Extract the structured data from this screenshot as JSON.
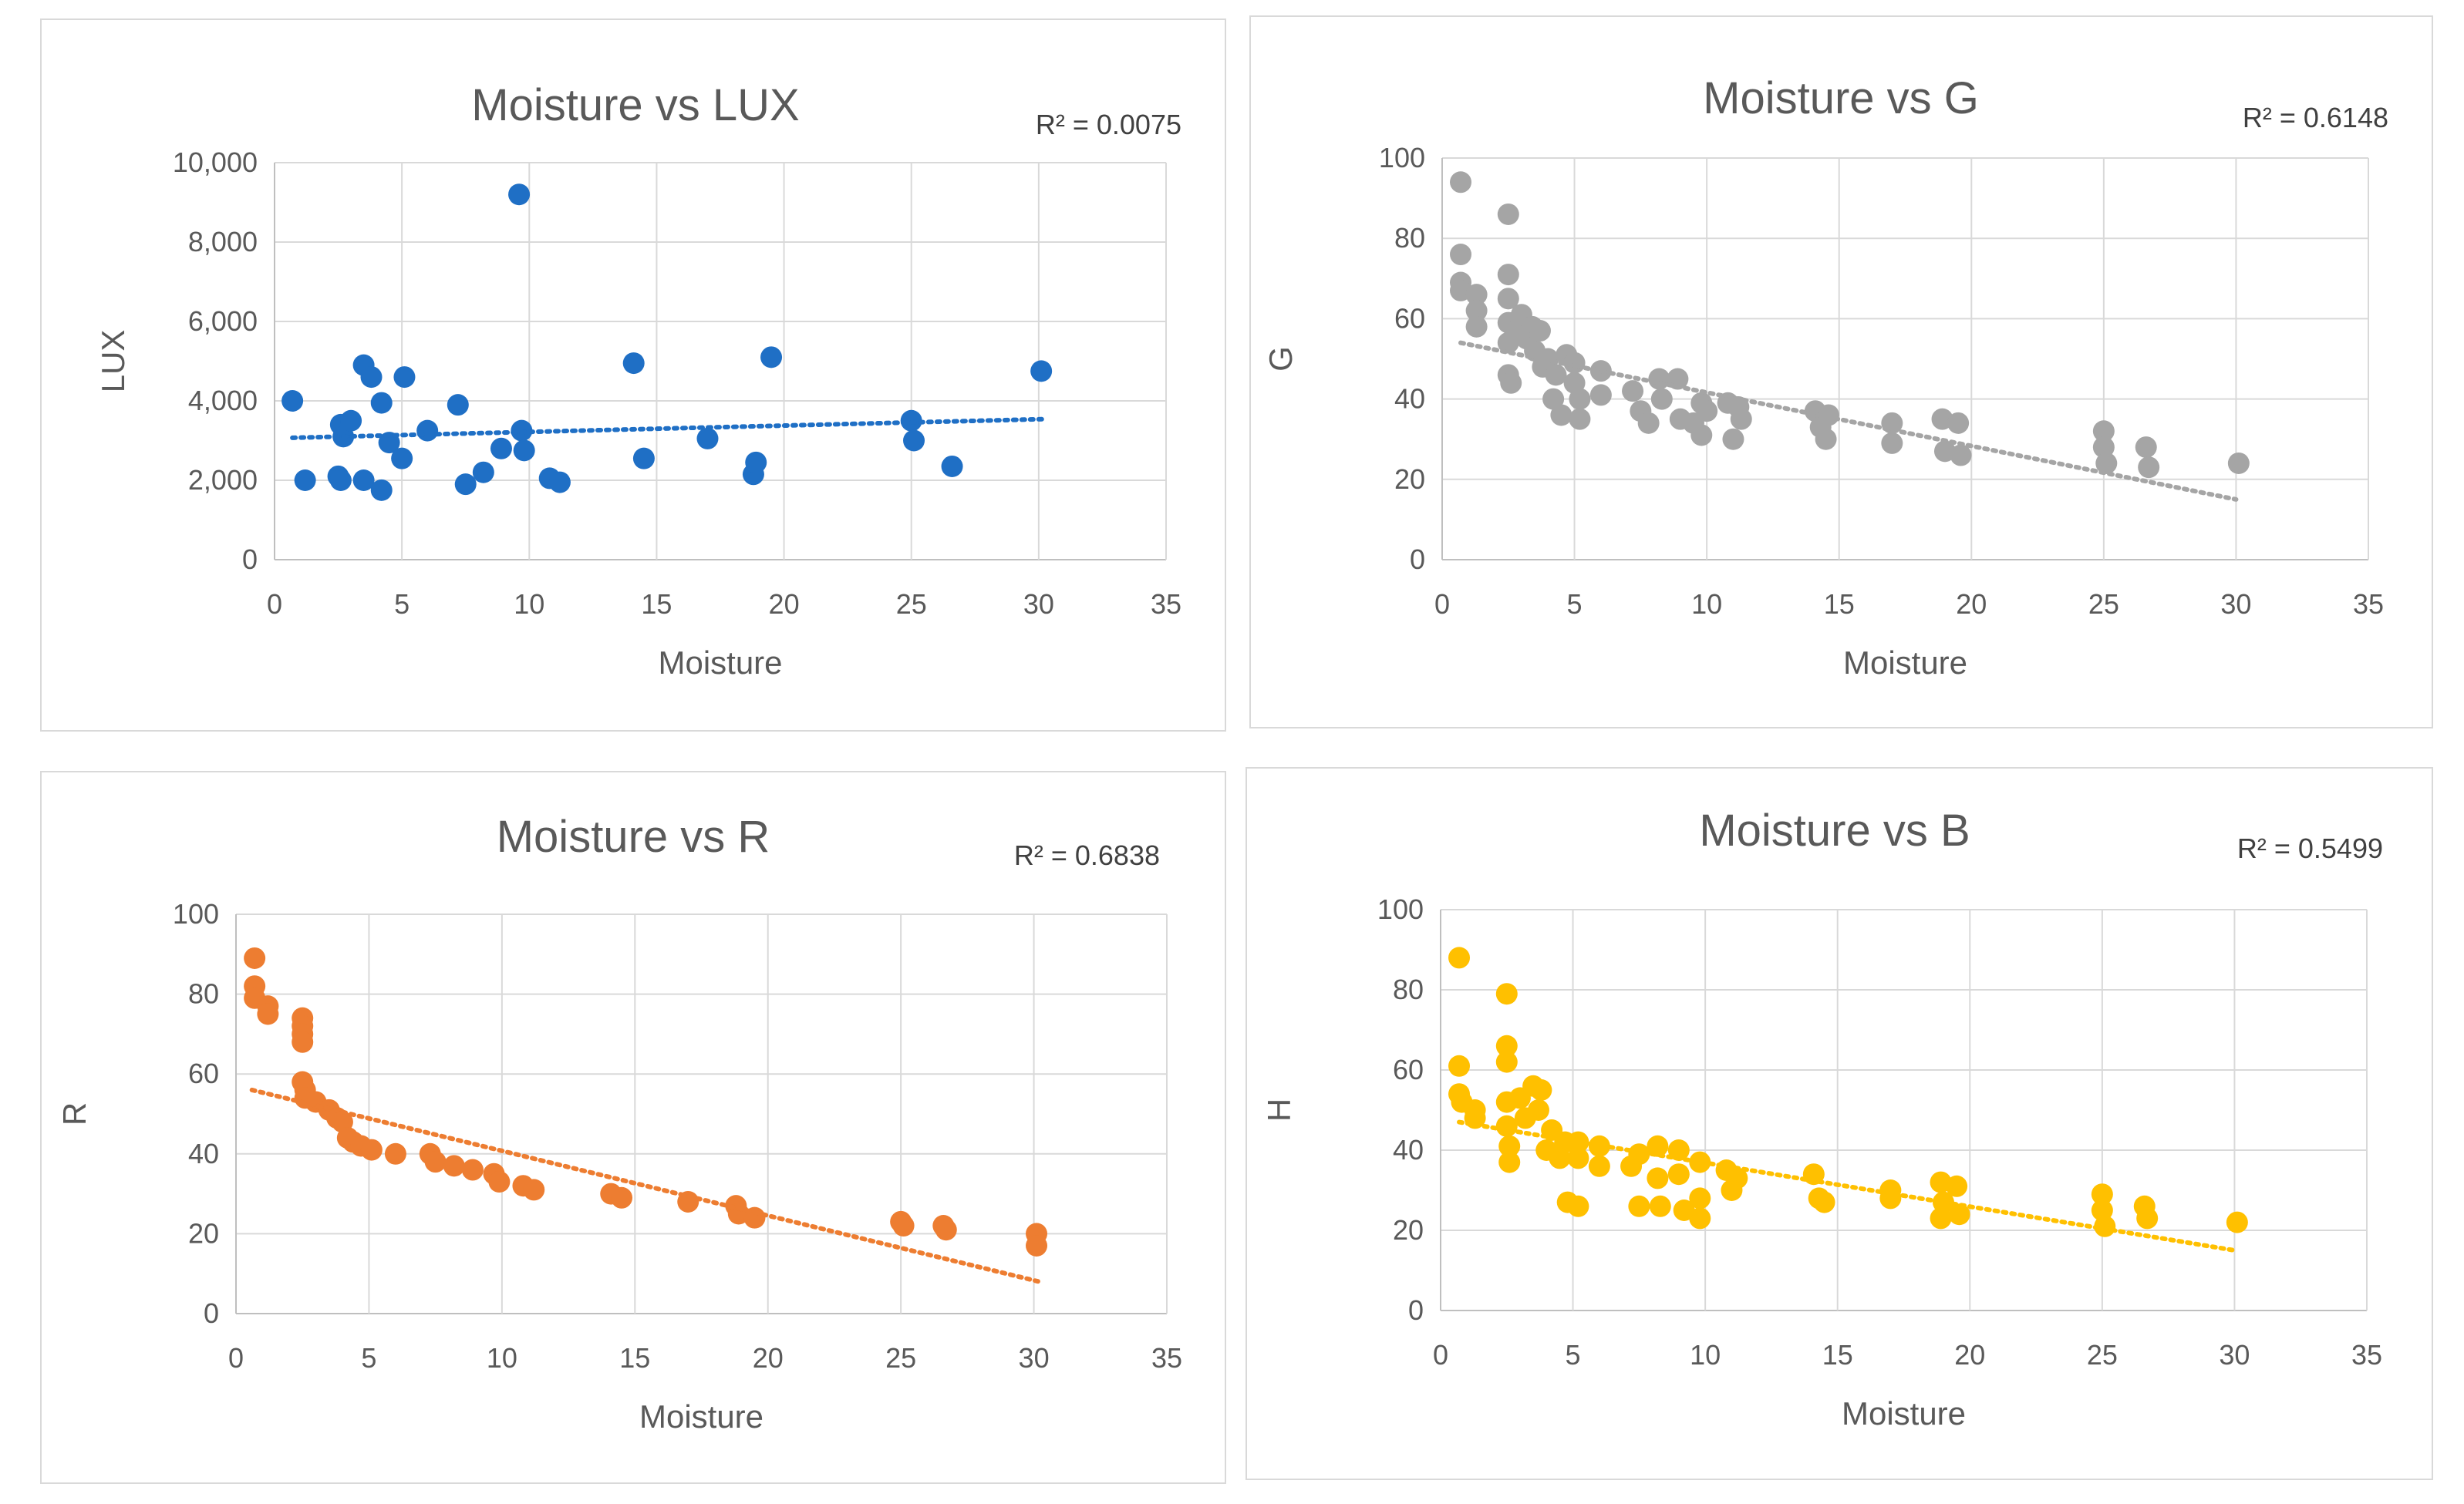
{
  "chart_data": [
    {
      "id": "lux",
      "type": "scatter",
      "title": "Moisture vs LUX",
      "r2_label": "R² = 0.0075",
      "xlabel": "Moisture",
      "ylabel": "LUX",
      "xlim": [
        0,
        35
      ],
      "ylim": [
        0,
        10000
      ],
      "x_ticks": [
        0,
        5,
        10,
        15,
        20,
        25,
        30,
        35
      ],
      "y_ticks": [
        0,
        2000,
        4000,
        6000,
        8000,
        10000
      ],
      "y_tick_labels": [
        "0",
        "2,000",
        "4,000",
        "6,000",
        "8,000",
        "10,000"
      ],
      "color": "#1f6fc5",
      "trendline": {
        "x": [
          0.7,
          30.2
        ],
        "y": [
          3070,
          3540
        ]
      },
      "series": [
        {
          "name": "LUX",
          "x": [
            0.7,
            1.2,
            2.5,
            2.6,
            2.6,
            2.7,
            3.0,
            3.5,
            3.5,
            3.8,
            4.2,
            4.2,
            4.5,
            5.0,
            5.1,
            6.0,
            7.2,
            7.5,
            8.2,
            8.9,
            9.6,
            9.7,
            9.8,
            10.8,
            11.2,
            14.1,
            14.5,
            17.0,
            18.8,
            18.9,
            19.5,
            25.0,
            25.1,
            26.6,
            30.1
          ],
          "y": [
            4000,
            2000,
            2100,
            2000,
            3400,
            3100,
            3500,
            4900,
            2000,
            4600,
            1750,
            3950,
            2950,
            2550,
            4600,
            3250,
            3900,
            1900,
            2200,
            2800,
            9200,
            3250,
            2750,
            2050,
            1950,
            4950,
            2550,
            3050,
            2150,
            2450,
            5100,
            3500,
            3000,
            2350,
            4750
          ]
        }
      ]
    },
    {
      "id": "g",
      "type": "scatter",
      "title": "Moisture vs G",
      "r2_label": "R² = 0.6148",
      "xlabel": "Moisture",
      "ylabel": "G",
      "xlim": [
        0,
        35
      ],
      "ylim": [
        0,
        100
      ],
      "x_ticks": [
        0,
        5,
        10,
        15,
        20,
        25,
        30,
        35
      ],
      "y_ticks": [
        0,
        20,
        40,
        60,
        80,
        100
      ],
      "y_tick_labels": [
        "0",
        "20",
        "40",
        "60",
        "80",
        "100"
      ],
      "color": "#a5a5a5",
      "trendline": {
        "x": [
          0.7,
          30.0
        ],
        "y": [
          54,
          15
        ]
      },
      "series": [
        {
          "name": "G",
          "x": [
            0.7,
            0.7,
            0.7,
            0.7,
            1.3,
            1.3,
            1.3,
            2.5,
            2.5,
            2.5,
            2.5,
            2.5,
            2.5,
            2.6,
            2.8,
            3.0,
            3.2,
            3.4,
            3.5,
            3.7,
            3.8,
            4.0,
            4.2,
            4.3,
            4.5,
            4.7,
            5.0,
            5.0,
            5.2,
            5.2,
            6.0,
            6.0,
            7.2,
            7.5,
            7.8,
            8.2,
            8.3,
            8.9,
            9.0,
            9.5,
            9.8,
            9.8,
            10.0,
            10.8,
            11.0,
            11.2,
            11.3,
            14.1,
            14.3,
            14.5,
            14.6,
            17.0,
            17.0,
            18.9,
            19.0,
            19.5,
            19.6,
            25.0,
            25.0,
            25.1,
            26.6,
            26.7,
            30.1
          ],
          "y": [
            94,
            76,
            69,
            67,
            66,
            62,
            58,
            86,
            71,
            65,
            59,
            54,
            46,
            44,
            57,
            61,
            55,
            58,
            52,
            57,
            48,
            50,
            40,
            46,
            36,
            51,
            49,
            44,
            40,
            35,
            47,
            41,
            42,
            37,
            34,
            45,
            40,
            45,
            35,
            34,
            39,
            31,
            37,
            39,
            30,
            38,
            35,
            37,
            33,
            30,
            36,
            34,
            29,
            35,
            27,
            34,
            26,
            32,
            28,
            24,
            28,
            23,
            24
          ]
        }
      ]
    },
    {
      "id": "r",
      "type": "scatter",
      "title": "Moisture vs R",
      "r2_label": "R² = 0.6838",
      "xlabel": "Moisture",
      "ylabel": "R",
      "xlim": [
        0,
        35
      ],
      "ylim": [
        0,
        100
      ],
      "x_ticks": [
        0,
        5,
        10,
        15,
        20,
        25,
        30,
        35
      ],
      "y_ticks": [
        0,
        20,
        40,
        60,
        80,
        100
      ],
      "y_tick_labels": [
        "0",
        "20",
        "40",
        "60",
        "80",
        "100"
      ],
      "color": "#ed7d31",
      "trendline": {
        "x": [
          0.6,
          30.2
        ],
        "y": [
          56,
          8
        ]
      },
      "series": [
        {
          "name": "R",
          "x": [
            0.7,
            0.7,
            0.7,
            1.2,
            1.2,
            2.5,
            2.5,
            2.5,
            2.5,
            2.5,
            2.6,
            2.6,
            3.0,
            3.5,
            3.8,
            4.0,
            4.2,
            4.4,
            4.7,
            5.1,
            6.0,
            7.3,
            7.5,
            8.2,
            8.9,
            9.7,
            9.9,
            10.8,
            11.2,
            14.1,
            14.5,
            17.0,
            18.8,
            18.9,
            19.5,
            25.0,
            25.1,
            26.6,
            26.7,
            30.1,
            30.1
          ],
          "y": [
            89,
            82,
            79,
            77,
            75,
            74,
            72,
            70,
            68,
            58,
            56,
            54,
            53,
            51,
            49,
            48,
            44,
            43,
            42,
            41,
            40,
            40,
            38,
            37,
            36,
            35,
            33,
            32,
            31,
            30,
            29,
            28,
            27,
            25,
            24,
            23,
            22,
            22,
            21,
            20,
            17
          ]
        }
      ]
    },
    {
      "id": "b",
      "type": "scatter",
      "title": "Moisture vs B",
      "r2_label": "R² = 0.5499",
      "xlabel": "Moisture",
      "ylabel": "H",
      "xlim": [
        0,
        35
      ],
      "ylim": [
        0,
        100
      ],
      "x_ticks": [
        0,
        5,
        10,
        15,
        20,
        25,
        30,
        35
      ],
      "y_ticks": [
        0,
        20,
        40,
        60,
        80,
        100
      ],
      "y_tick_labels": [
        "0",
        "20",
        "40",
        "60",
        "80",
        "100"
      ],
      "color": "#ffc000",
      "trendline": {
        "x": [
          0.7,
          30.0
        ],
        "y": [
          47,
          15
        ]
      },
      "series": [
        {
          "name": "B",
          "x": [
            0.7,
            0.7,
            0.7,
            0.8,
            1.3,
            1.3,
            2.5,
            2.5,
            2.5,
            2.5,
            2.5,
            2.6,
            2.6,
            3.0,
            3.2,
            3.5,
            3.7,
            3.8,
            4.0,
            4.2,
            4.5,
            4.7,
            4.8,
            5.2,
            5.2,
            5.2,
            6.0,
            6.0,
            7.2,
            7.5,
            7.5,
            8.2,
            8.2,
            8.3,
            9.0,
            9.0,
            9.2,
            9.8,
            9.8,
            9.8,
            10.8,
            11.0,
            11.2,
            14.1,
            14.3,
            14.5,
            17.0,
            17.0,
            18.9,
            18.9,
            19.0,
            19.5,
            19.6,
            25.0,
            25.0,
            25.1,
            26.6,
            26.7,
            30.1
          ],
          "y": [
            88,
            61,
            54,
            52,
            50,
            48,
            79,
            66,
            62,
            52,
            46,
            41,
            37,
            53,
            48,
            56,
            50,
            55,
            40,
            45,
            38,
            42,
            27,
            42,
            38,
            26,
            41,
            36,
            36,
            39,
            26,
            41,
            33,
            26,
            40,
            34,
            25,
            37,
            28,
            23,
            35,
            30,
            33,
            34,
            28,
            27,
            30,
            28,
            32,
            23,
            27,
            31,
            24,
            29,
            25,
            21,
            26,
            23,
            22
          ]
        }
      ]
    }
  ]
}
